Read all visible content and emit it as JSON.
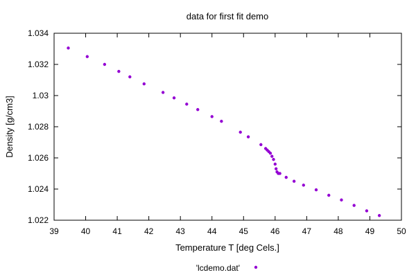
{
  "chart_data": {
    "type": "scatter",
    "title": "data for first fit demo",
    "xlabel": "Temperature T  [deg Cels.]",
    "ylabel": "Density [g/cm3]",
    "xlim": [
      39,
      50
    ],
    "ylim": [
      1.022,
      1.034
    ],
    "xticks": [
      39,
      40,
      41,
      42,
      43,
      44,
      45,
      46,
      47,
      48,
      49,
      50
    ],
    "yticks": [
      1.022,
      1.024,
      1.026,
      1.028,
      1.03,
      1.032,
      1.034
    ],
    "xtick_labels": [
      "39",
      "40",
      "41",
      "42",
      "43",
      "44",
      "45",
      "46",
      "47",
      "48",
      "49",
      "50"
    ],
    "ytick_labels": [
      "1.022",
      "1.024",
      "1.026",
      "1.028",
      "1.03",
      "1.032",
      "1.034"
    ],
    "grid": false,
    "legend_position": "bottom-center",
    "series": [
      {
        "name": "'lcdemo.dat'",
        "color": "#9400d3",
        "x": [
          39.45,
          40.05,
          40.6,
          41.05,
          41.4,
          41.85,
          42.45,
          42.8,
          43.2,
          43.55,
          44.0,
          44.3,
          44.9,
          45.15,
          45.55,
          45.7,
          45.75,
          45.8,
          45.85,
          45.9,
          45.95,
          46.0,
          46.03,
          46.06,
          46.1,
          46.15,
          46.35,
          46.6,
          46.9,
          47.3,
          47.7,
          48.1,
          48.5,
          48.9,
          49.3
        ],
        "y": [
          1.03305,
          1.0325,
          1.032,
          1.03155,
          1.0312,
          1.03075,
          1.0302,
          1.02985,
          1.02945,
          1.0291,
          1.02865,
          1.02835,
          1.02765,
          1.02735,
          1.02685,
          1.0266,
          1.0265,
          1.0264,
          1.0263,
          1.0261,
          1.0259,
          1.0256,
          1.0253,
          1.0251,
          1.025,
          1.025,
          1.02475,
          1.0245,
          1.02425,
          1.02395,
          1.0236,
          1.0233,
          1.02295,
          1.0226,
          1.0223
        ]
      }
    ]
  }
}
